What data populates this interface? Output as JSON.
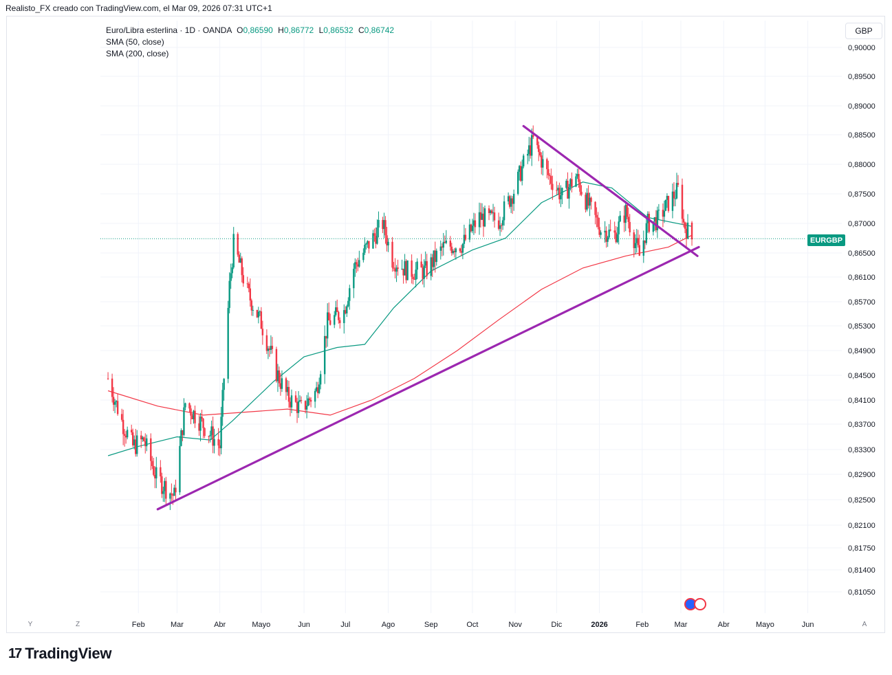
{
  "caption": "Realisto_FX creado con TradingView.com, el Mar 09, 2026 07:31 UTC+1",
  "legend": {
    "symbol": "Euro/Libra esterlina · 1D · OANDA",
    "o_label": "O",
    "o_value": "0,86590",
    "h_label": "H",
    "h_value": "0,86772",
    "l_label": "L",
    "l_value": "0,86532",
    "c_label": "C",
    "c_value": "0,86742",
    "sma50": "SMA (50, close)",
    "sma200": "SMA (200, close)"
  },
  "currency_button": "GBP",
  "price_badge": "EURGBP",
  "axis_buttons": {
    "left1": "Y",
    "left2": "Z",
    "right": "A"
  },
  "brand": {
    "logo": "17",
    "name": "TradingView"
  },
  "colors": {
    "up": "#089981",
    "down": "#f23645",
    "sma50": "#089981",
    "sma200": "#f23645",
    "trendline": "#9c27b0",
    "grid": "#f0f3fa"
  },
  "chart_data": {
    "type": "candlestick",
    "title": "Euro/Libra esterlina · 1D · OANDA",
    "x_ticks": [
      "Feb",
      "Mar",
      "Abr",
      "Mayo",
      "Jun",
      "Jul",
      "Ago",
      "Sep",
      "Oct",
      "Nov",
      "Dic",
      "2026",
      "Feb",
      "Mar",
      "Abr",
      "Mayo",
      "Jun"
    ],
    "y_ticks": [
      "0,90000",
      "0,89500",
      "0,89000",
      "0,88500",
      "0,88000",
      "0,87500",
      "0,87000",
      "0,86500",
      "0,86100",
      "0,85700",
      "0,85300",
      "0,84900",
      "0,84500",
      "0,84100",
      "0,83700",
      "0,83300",
      "0,82900",
      "0,82500",
      "0,82100",
      "0,81750",
      "0,81400",
      "0,81050"
    ],
    "ylim": [
      0.808,
      0.902
    ],
    "last_close": 0.86742,
    "price_path": [
      {
        "date": "2025-01-10",
        "price": 0.8445
      },
      {
        "date": "2025-01-20",
        "price": 0.8375
      },
      {
        "date": "2025-01-28",
        "price": 0.8335
      },
      {
        "date": "2025-02-05",
        "price": 0.8345
      },
      {
        "date": "2025-02-14",
        "price": 0.8285
      },
      {
        "date": "2025-02-27",
        "price": 0.8255
      },
      {
        "date": "2025-03-07",
        "price": 0.8405
      },
      {
        "date": "2025-03-14",
        "price": 0.8385
      },
      {
        "date": "2025-03-25",
        "price": 0.8355
      },
      {
        "date": "2025-04-01",
        "price": 0.8335
      },
      {
        "date": "2025-04-08",
        "price": 0.8595
      },
      {
        "date": "2025-04-11",
        "price": 0.8665
      },
      {
        "date": "2025-04-21",
        "price": 0.8585
      },
      {
        "date": "2025-05-01",
        "price": 0.8535
      },
      {
        "date": "2025-05-12",
        "price": 0.8455
      },
      {
        "date": "2025-05-20",
        "price": 0.8415
      },
      {
        "date": "2025-05-30",
        "price": 0.8395
      },
      {
        "date": "2025-06-10",
        "price": 0.8425
      },
      {
        "date": "2025-06-18",
        "price": 0.8535
      },
      {
        "date": "2025-06-30",
        "price": 0.8555
      },
      {
        "date": "2025-07-07",
        "price": 0.8625
      },
      {
        "date": "2025-07-18",
        "price": 0.8665
      },
      {
        "date": "2025-07-28",
        "price": 0.87
      },
      {
        "date": "2025-08-04",
        "price": 0.864
      },
      {
        "date": "2025-08-15",
        "price": 0.862
      },
      {
        "date": "2025-08-28",
        "price": 0.862
      },
      {
        "date": "2025-09-10",
        "price": 0.866
      },
      {
        "date": "2025-09-24",
        "price": 0.8665
      },
      {
        "date": "2025-10-06",
        "price": 0.871
      },
      {
        "date": "2025-10-20",
        "price": 0.8705
      },
      {
        "date": "2025-10-31",
        "price": 0.8755
      },
      {
        "date": "2025-11-07",
        "price": 0.88
      },
      {
        "date": "2025-11-14",
        "price": 0.884
      },
      {
        "date": "2025-11-24",
        "price": 0.8785
      },
      {
        "date": "2025-12-05",
        "price": 0.8745
      },
      {
        "date": "2025-12-15",
        "price": 0.878
      },
      {
        "date": "2025-12-22",
        "price": 0.874
      },
      {
        "date": "2026-01-02",
        "price": 0.869
      },
      {
        "date": "2026-01-12",
        "price": 0.868
      },
      {
        "date": "2026-01-20",
        "price": 0.872
      },
      {
        "date": "2026-01-30",
        "price": 0.8645
      },
      {
        "date": "2026-02-05",
        "price": 0.87
      },
      {
        "date": "2026-02-12",
        "price": 0.8705
      },
      {
        "date": "2026-02-20",
        "price": 0.8735
      },
      {
        "date": "2026-02-28",
        "price": 0.876
      },
      {
        "date": "2026-03-03",
        "price": 0.87
      },
      {
        "date": "2026-03-09",
        "price": 0.86742
      }
    ],
    "series": [
      {
        "name": "SMA (50, close)",
        "points": [
          {
            "date": "2025-01-10",
            "price": 0.832
          },
          {
            "date": "2025-02-01",
            "price": 0.8335
          },
          {
            "date": "2025-03-01",
            "price": 0.835
          },
          {
            "date": "2025-03-25",
            "price": 0.8345
          },
          {
            "date": "2025-04-10",
            "price": 0.8375
          },
          {
            "date": "2025-05-10",
            "price": 0.844
          },
          {
            "date": "2025-06-01",
            "price": 0.848
          },
          {
            "date": "2025-06-25",
            "price": 0.8495
          },
          {
            "date": "2025-07-15",
            "price": 0.85
          },
          {
            "date": "2025-08-05",
            "price": 0.856
          },
          {
            "date": "2025-09-01",
            "price": 0.862
          },
          {
            "date": "2025-10-01",
            "price": 0.8655
          },
          {
            "date": "2025-10-25",
            "price": 0.8675
          },
          {
            "date": "2025-11-20",
            "price": 0.8735
          },
          {
            "date": "2025-12-20",
            "price": 0.877
          },
          {
            "date": "2026-01-10",
            "price": 0.876
          },
          {
            "date": "2026-02-05",
            "price": 0.871
          },
          {
            "date": "2026-03-09",
            "price": 0.8695
          }
        ]
      },
      {
        "name": "SMA (200, close)",
        "points": [
          {
            "date": "2025-01-10",
            "price": 0.8425
          },
          {
            "date": "2025-02-15",
            "price": 0.84
          },
          {
            "date": "2025-03-20",
            "price": 0.8385
          },
          {
            "date": "2025-04-20",
            "price": 0.839
          },
          {
            "date": "2025-05-20",
            "price": 0.8395
          },
          {
            "date": "2025-06-20",
            "price": 0.8385
          },
          {
            "date": "2025-07-20",
            "price": 0.841
          },
          {
            "date": "2025-08-20",
            "price": 0.8445
          },
          {
            "date": "2025-09-20",
            "price": 0.849
          },
          {
            "date": "2025-10-20",
            "price": 0.854
          },
          {
            "date": "2025-11-20",
            "price": 0.859
          },
          {
            "date": "2025-12-20",
            "price": 0.8625
          },
          {
            "date": "2026-01-20",
            "price": 0.8645
          },
          {
            "date": "2026-02-20",
            "price": 0.866
          },
          {
            "date": "2026-03-09",
            "price": 0.868
          }
        ]
      }
    ],
    "trendlines": [
      {
        "from": {
          "date": "2025-02-15",
          "price": 0.8235
        },
        "to": {
          "date": "2026-03-14",
          "price": 0.866
        }
      },
      {
        "from": {
          "date": "2025-11-07",
          "price": 0.8865
        },
        "to": {
          "date": "2026-03-13",
          "price": 0.8645
        }
      }
    ]
  }
}
